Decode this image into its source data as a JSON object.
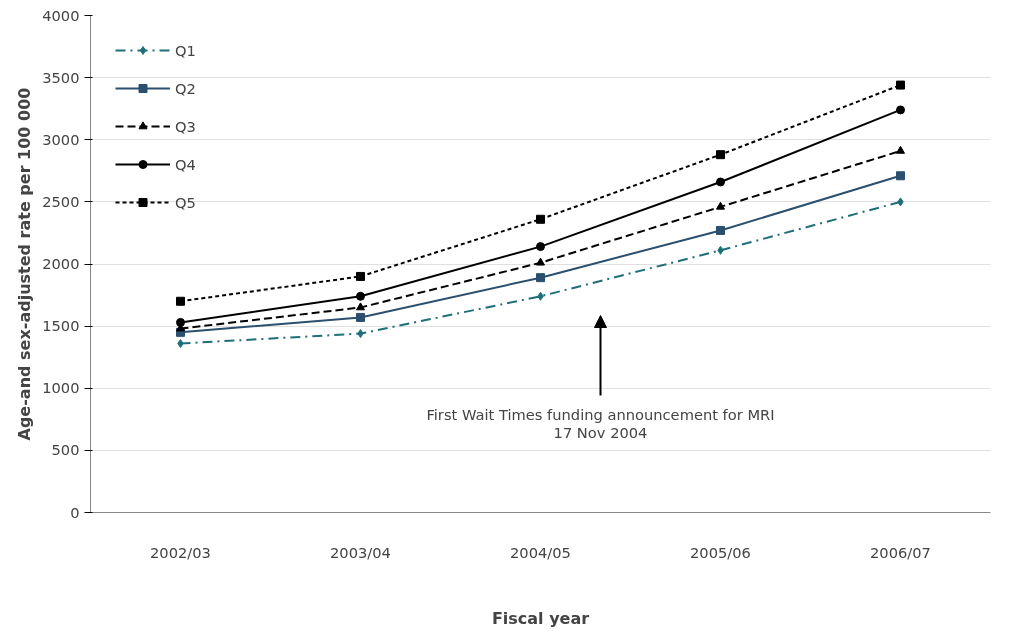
{
  "chart_data": {
    "type": "line",
    "xlabel": "Fiscal year",
    "ylabel": "Age-and sex-adjusted rate per 100 000",
    "categories": [
      "2002/03",
      "2003/04",
      "2004/05",
      "2005/06",
      "2006/07"
    ],
    "series": [
      {
        "name": "Q1",
        "color": "#1f6f78",
        "marker": "diamond",
        "line_style": "dashdot",
        "values": [
          1360,
          1440,
          1740,
          2110,
          2500
        ]
      },
      {
        "name": "Q2",
        "color": "#2b4f6e",
        "marker": "square",
        "line_style": "solid",
        "values": [
          1450,
          1570,
          1890,
          2270,
          2710
        ]
      },
      {
        "name": "Q3",
        "color": "#000000",
        "marker": "triangle",
        "line_style": "dashed",
        "values": [
          1480,
          1650,
          2010,
          2460,
          2910
        ]
      },
      {
        "name": "Q4",
        "color": "#000000",
        "marker": "circle",
        "line_style": "solid",
        "values": [
          1530,
          1740,
          2140,
          2660,
          3240
        ]
      },
      {
        "name": "Q5",
        "color": "#000000",
        "marker": "square",
        "line_style": "dotted",
        "values": [
          1700,
          1900,
          2360,
          2880,
          3440
        ]
      }
    ],
    "ylim": [
      0,
      4000
    ],
    "yticks": [
      0,
      500,
      1000,
      1500,
      2000,
      2500,
      3000,
      3500,
      4000
    ],
    "grid": "y",
    "legend": "top left",
    "annotations": [
      "First Wait Times funding announcement for MRI\n17 Nov 2004"
    ]
  }
}
